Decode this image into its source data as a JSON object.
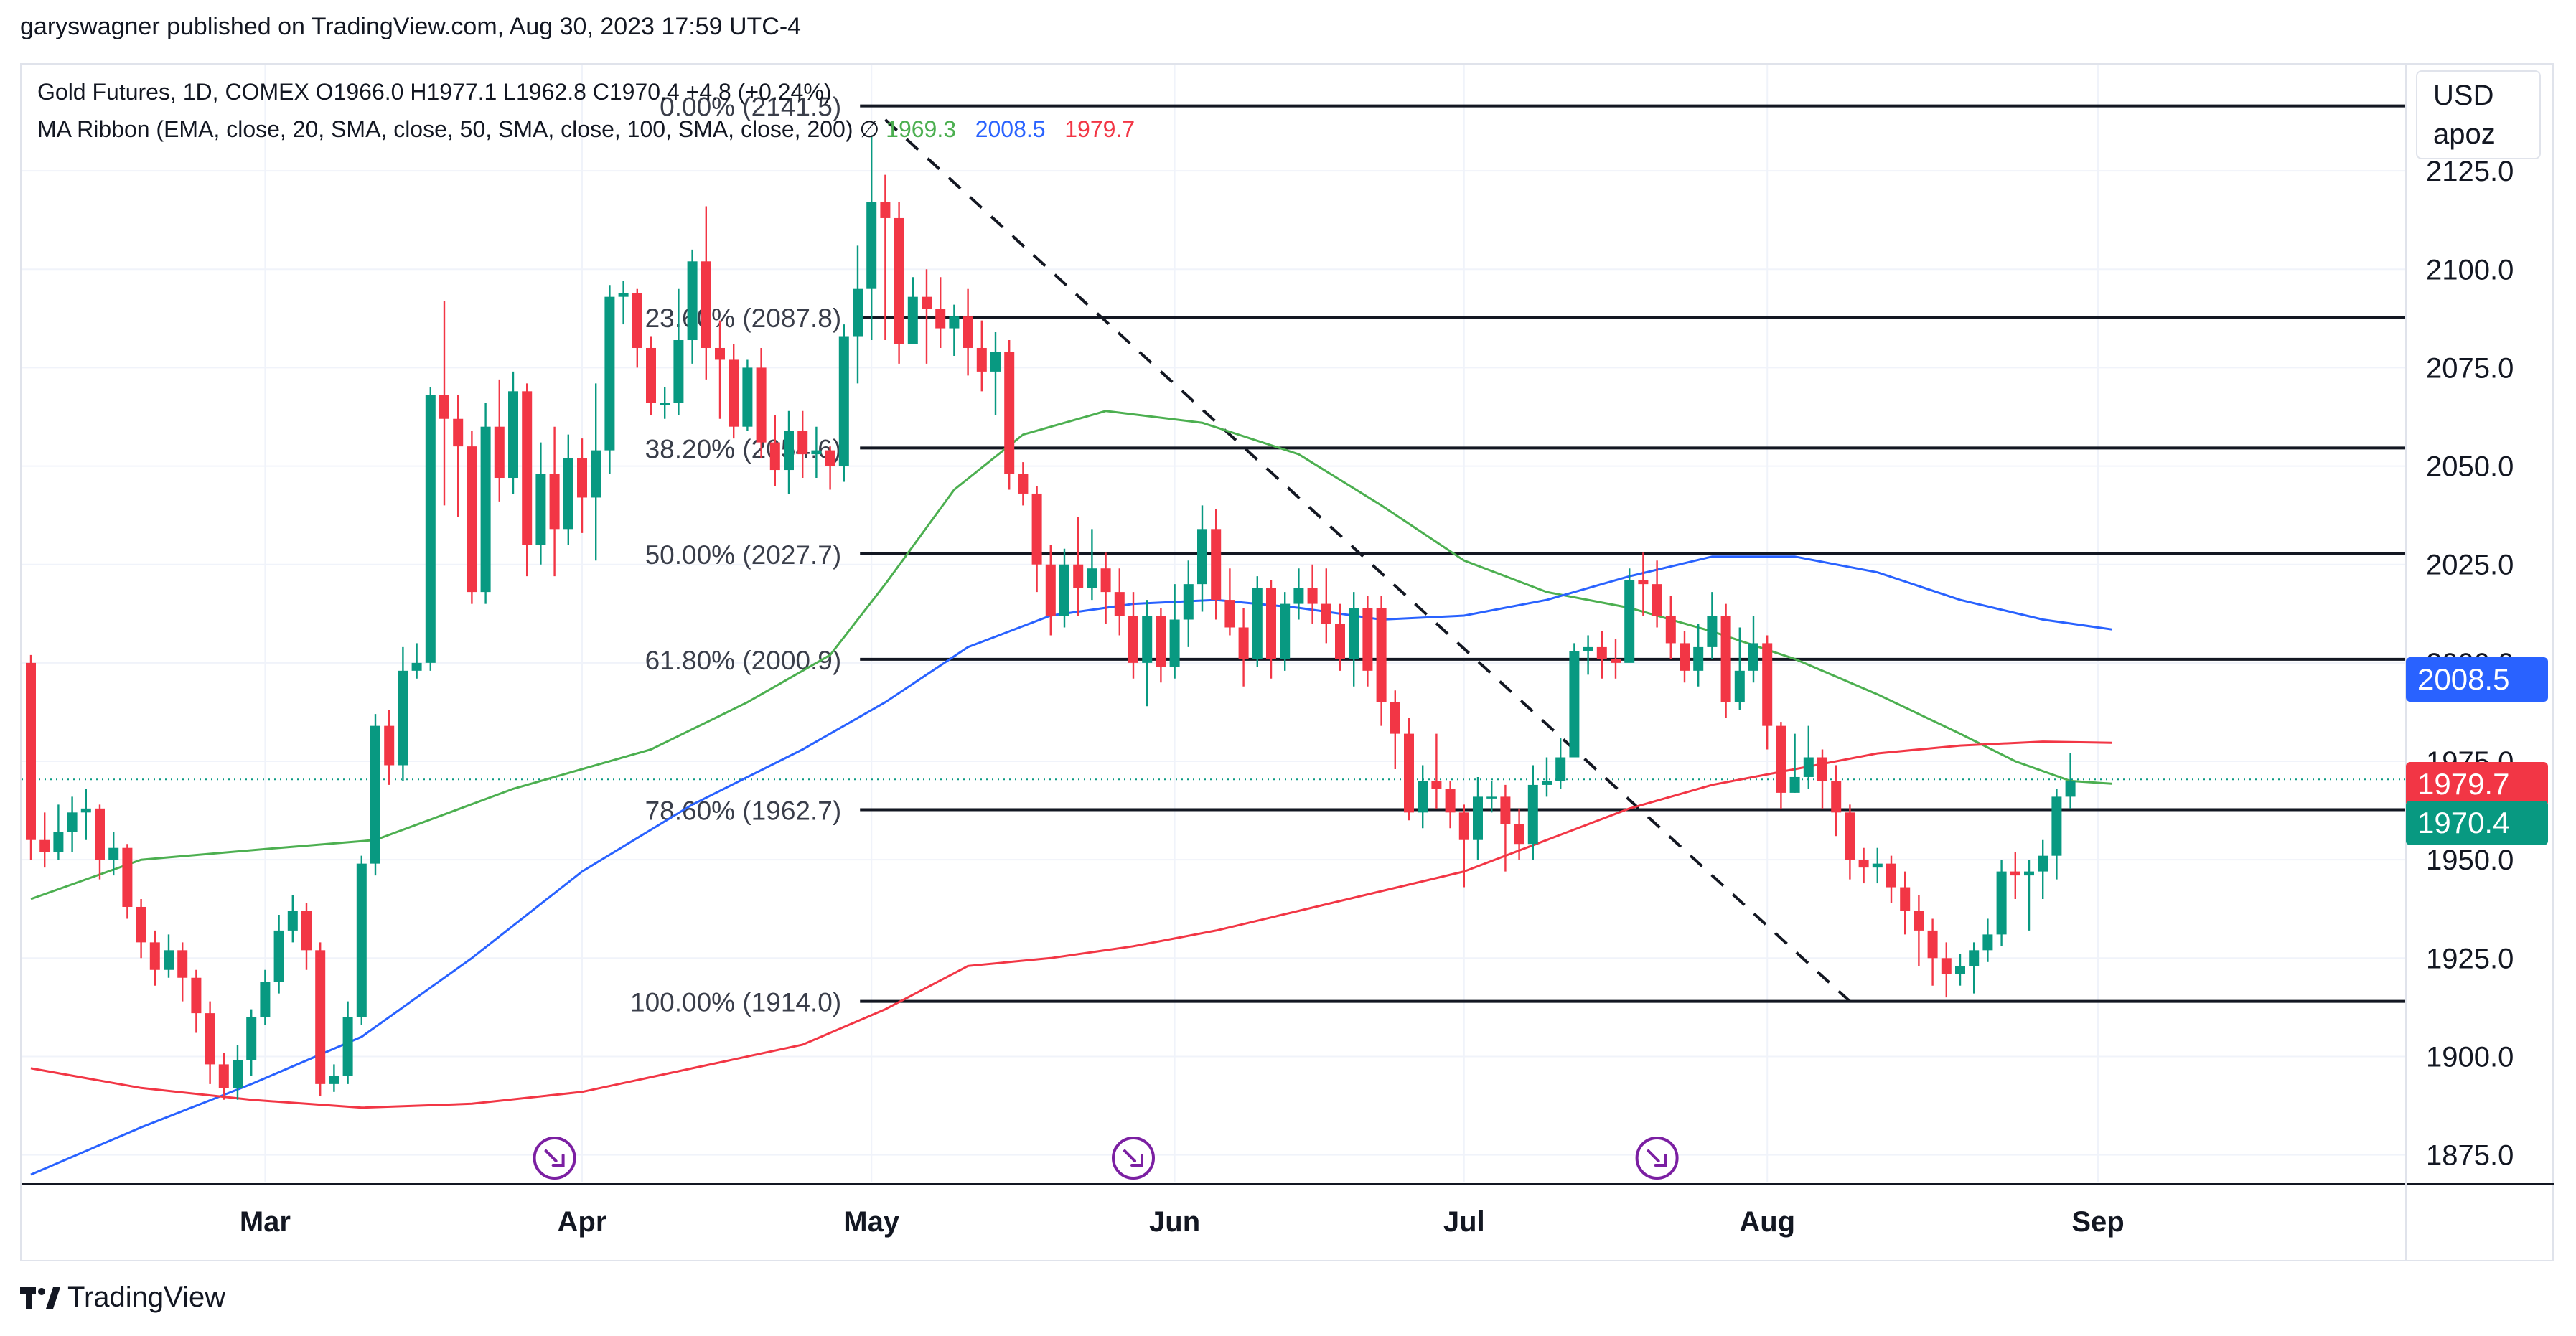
{
  "header": {
    "publisher_line": "garyswagner published on TradingView.com, Aug 30, 2023 17:59 UTC-4"
  },
  "legend": {
    "line1": "Gold Futures, 1D, COMEX  O1966.0  H1977.1  L1962.8  C1970.4  +4.8 (+0.24%)",
    "line2_prefix": "MA Ribbon (EMA, close, 20, SMA, close, 50, SMA, close, 100, SMA, close, 200)  ∅ ",
    "ma20_value": "1969.3",
    "ma50_value": "2008.5",
    "ma200_value": "1979.7"
  },
  "currency": {
    "line1": "USD",
    "line2": "apoz"
  },
  "price_badges": {
    "blue": "2008.5",
    "red": "1979.7",
    "green": "1970.4"
  },
  "brand": {
    "name": "TradingView"
  },
  "colors": {
    "up": "#089981",
    "down": "#f23645",
    "ma20": "#4caf50",
    "ma50": "#2962ff",
    "ma200": "#f23645",
    "fib": "#131722",
    "grid": "#f0f3fa",
    "event": "#7b1fa2"
  },
  "chart_data": {
    "type": "candlestick",
    "title": "Gold Futures, 1D, COMEX",
    "ylabel": "USD",
    "ylim": [
      1868,
      2152
    ],
    "y_ticks": [
      1875.0,
      1900.0,
      1925.0,
      1950.0,
      1975.0,
      2000.0,
      2025.0,
      2050.0,
      2075.0,
      2100.0,
      2125.0
    ],
    "x_tick_labels": [
      {
        "label": "Mar",
        "bar": 17
      },
      {
        "label": "Apr",
        "bar": 40
      },
      {
        "label": "May",
        "bar": 61
      },
      {
        "label": "Jun",
        "bar": 83
      },
      {
        "label": "Jul",
        "bar": 104
      },
      {
        "label": "Aug",
        "bar": 126
      },
      {
        "label": "Sep",
        "bar": 150
      }
    ],
    "candles": [
      [
        2000,
        1955,
        2002,
        1950
      ],
      [
        1955,
        1952,
        1962,
        1948
      ],
      [
        1952,
        1957,
        1964,
        1950
      ],
      [
        1957,
        1962,
        1966,
        1952
      ],
      [
        1962,
        1963,
        1968,
        1955
      ],
      [
        1963,
        1950,
        1964,
        1945
      ],
      [
        1950,
        1953,
        1957,
        1946
      ],
      [
        1953,
        1938,
        1954,
        1935
      ],
      [
        1938,
        1929,
        1940,
        1925
      ],
      [
        1929,
        1922,
        1932,
        1918
      ],
      [
        1922,
        1927,
        1931,
        1920
      ],
      [
        1927,
        1920,
        1929,
        1914
      ],
      [
        1920,
        1911,
        1922,
        1906
      ],
      [
        1911,
        1898,
        1914,
        1893
      ],
      [
        1898,
        1892,
        1901,
        1889
      ],
      [
        1892,
        1899,
        1903,
        1889
      ],
      [
        1899,
        1910,
        1912,
        1895
      ],
      [
        1910,
        1919,
        1922,
        1908
      ],
      [
        1919,
        1932,
        1936,
        1916
      ],
      [
        1932,
        1937,
        1941,
        1929
      ],
      [
        1937,
        1927,
        1939,
        1922
      ],
      [
        1927,
        1893,
        1929,
        1890
      ],
      [
        1893,
        1895,
        1898,
        1891
      ],
      [
        1895,
        1910,
        1914,
        1893
      ],
      [
        1910,
        1949,
        1951,
        1908
      ],
      [
        1949,
        1984,
        1987,
        1946
      ],
      [
        1984,
        1974,
        1988,
        1969
      ],
      [
        1974,
        1998,
        2004,
        1970
      ],
      [
        1998,
        2000,
        2005,
        1996
      ],
      [
        2000,
        2068,
        2070,
        1998
      ],
      [
        2068,
        2062,
        2092,
        2040
      ],
      [
        2062,
        2055,
        2068,
        2037
      ],
      [
        2055,
        2018,
        2059,
        2015
      ],
      [
        2018,
        2060,
        2066,
        2015
      ],
      [
        2060,
        2047,
        2072,
        2041
      ],
      [
        2047,
        2069,
        2074,
        2043
      ],
      [
        2069,
        2030,
        2071,
        2022
      ],
      [
        2030,
        2048,
        2056,
        2025
      ],
      [
        2048,
        2034,
        2060,
        2022
      ],
      [
        2034,
        2052,
        2058,
        2030
      ],
      [
        2052,
        2042,
        2057,
        2033
      ],
      [
        2042,
        2054,
        2071,
        2026
      ],
      [
        2054,
        2093,
        2096,
        2048
      ],
      [
        2093,
        2094,
        2097,
        2086
      ],
      [
        2094,
        2080,
        2095,
        2075
      ],
      [
        2080,
        2066,
        2083,
        2063
      ],
      [
        2066,
        2066,
        2070,
        2062
      ],
      [
        2066,
        2082,
        2095,
        2063
      ],
      [
        2082,
        2102,
        2105,
        2076
      ],
      [
        2102,
        2080,
        2116,
        2072
      ],
      [
        2080,
        2077,
        2087,
        2062
      ],
      [
        2077,
        2060,
        2081,
        2057
      ],
      [
        2060,
        2075,
        2077,
        2059
      ],
      [
        2075,
        2056,
        2080,
        2052
      ],
      [
        2056,
        2049,
        2063,
        2045
      ],
      [
        2049,
        2059,
        2064,
        2043
      ],
      [
        2059,
        2053,
        2064,
        2047
      ],
      [
        2053,
        2054,
        2060,
        2047
      ],
      [
        2054,
        2050,
        2055,
        2044
      ],
      [
        2050,
        2083,
        2086,
        2046
      ],
      [
        2083,
        2095,
        2106,
        2071
      ],
      [
        2095,
        2117,
        2134,
        2082
      ],
      [
        2117,
        2113,
        2124,
        2082
      ],
      [
        2113,
        2081,
        2117,
        2076
      ],
      [
        2081,
        2093,
        2098,
        2082
      ],
      [
        2093,
        2090,
        2100,
        2076
      ],
      [
        2090,
        2085,
        2098,
        2080
      ],
      [
        2085,
        2088,
        2091,
        2078
      ],
      [
        2088,
        2080,
        2095,
        2073
      ],
      [
        2080,
        2074,
        2087,
        2069
      ],
      [
        2074,
        2079,
        2084,
        2063
      ],
      [
        2079,
        2048,
        2082,
        2044
      ],
      [
        2048,
        2043,
        2051,
        2040
      ],
      [
        2043,
        2025,
        2045,
        2018
      ],
      [
        2025,
        2012,
        2030,
        2007
      ],
      [
        2012,
        2025,
        2029,
        2009
      ],
      [
        2025,
        2019,
        2037,
        2012
      ],
      [
        2019,
        2024,
        2034,
        2016
      ],
      [
        2024,
        2018,
        2028,
        2010
      ],
      [
        2018,
        2012,
        2024,
        2007
      ],
      [
        2012,
        2000,
        2018,
        1996
      ],
      [
        2000,
        2012,
        2016,
        1989
      ],
      [
        2012,
        1999,
        2014,
        1995
      ],
      [
        1999,
        2011,
        2020,
        1996
      ],
      [
        2011,
        2020,
        2026,
        2004
      ],
      [
        2020,
        2034,
        2040,
        2013
      ],
      [
        2034,
        2016,
        2039,
        2011
      ],
      [
        2016,
        2009,
        2024,
        2007
      ],
      [
        2009,
        2001,
        2014,
        1994
      ],
      [
        2001,
        2019,
        2022,
        1999
      ],
      [
        2019,
        2001,
        2021,
        1996
      ],
      [
        2001,
        2015,
        2018,
        1998
      ],
      [
        2015,
        2019,
        2024,
        2011
      ],
      [
        2019,
        2015,
        2025,
        2010
      ],
      [
        2015,
        2010,
        2024,
        2005
      ],
      [
        2010,
        2001,
        2015,
        1998
      ],
      [
        2001,
        2014,
        2018,
        1994
      ],
      [
        2014,
        1998,
        2017,
        1994
      ],
      [
        2014,
        1990,
        2017,
        1984
      ],
      [
        1990,
        1982,
        1993,
        1973
      ],
      [
        1982,
        1962,
        1986,
        1960
      ],
      [
        1962,
        1970,
        1974,
        1958
      ],
      [
        1970,
        1968,
        1982,
        1963
      ],
      [
        1968,
        1962,
        1970,
        1958
      ],
      [
        1962,
        1955,
        1964,
        1943
      ],
      [
        1955,
        1966,
        1971,
        1950
      ],
      [
        1966,
        1966,
        1970,
        1962
      ],
      [
        1966,
        1959,
        1969,
        1947
      ],
      [
        1959,
        1954,
        1963,
        1950
      ],
      [
        1954,
        1969,
        1974,
        1950
      ],
      [
        1969,
        1970,
        1976,
        1966
      ],
      [
        1970,
        1976,
        1981,
        1968
      ],
      [
        1976,
        2003,
        2005,
        1976
      ],
      [
        2003,
        2004,
        2007,
        1997
      ],
      [
        2004,
        2001,
        2008,
        1996
      ],
      [
        2001,
        2000,
        2006,
        1996
      ],
      [
        2000,
        2021,
        2024,
        2004
      ],
      [
        2021,
        2020,
        2028,
        2012
      ],
      [
        2020,
        2012,
        2026,
        2009
      ],
      [
        2012,
        2005,
        2017,
        2001
      ],
      [
        2005,
        1998,
        2008,
        1995
      ],
      [
        1998,
        2004,
        2010,
        1994
      ],
      [
        2004,
        2012,
        2018,
        2001
      ],
      [
        2012,
        1990,
        2015,
        1986
      ],
      [
        1990,
        1998,
        2009,
        1988
      ],
      [
        1998,
        2005,
        2012,
        1995
      ],
      [
        2005,
        1984,
        2007,
        1978
      ],
      [
        1984,
        1967,
        1985,
        1963
      ],
      [
        1967,
        1971,
        1982,
        1967
      ],
      [
        1971,
        1976,
        1984,
        1968
      ],
      [
        1976,
        1970,
        1978,
        1963
      ],
      [
        1970,
        1962,
        1974,
        1956
      ],
      [
        1962,
        1950,
        1964,
        1945
      ],
      [
        1950,
        1948,
        1953,
        1944
      ],
      [
        1948,
        1949,
        1953,
        1944
      ],
      [
        1949,
        1943,
        1951,
        1939
      ],
      [
        1943,
        1937,
        1947,
        1931
      ],
      [
        1937,
        1932,
        1941,
        1923
      ],
      [
        1932,
        1925,
        1935,
        1918
      ],
      [
        1925,
        1921,
        1929,
        1915
      ],
      [
        1921,
        1923,
        1926,
        1918
      ],
      [
        1923,
        1927,
        1929,
        1916
      ],
      [
        1927,
        1931,
        1935,
        1924
      ],
      [
        1931,
        1947,
        1950,
        1928
      ],
      [
        1947,
        1946,
        1952,
        1940
      ],
      [
        1946,
        1947,
        1950,
        1932
      ],
      [
        1947,
        1951,
        1955,
        1940
      ],
      [
        1951,
        1966,
        1968,
        1945
      ],
      [
        1966,
        1970,
        1977,
        1963
      ]
    ],
    "moving_averages": [
      {
        "name": "EMA 20",
        "color": "#4caf50",
        "values": [
          [
            0,
            1940
          ],
          [
            8,
            1950
          ],
          [
            18,
            1953
          ],
          [
            25,
            1955
          ],
          [
            35,
            1968
          ],
          [
            45,
            1978
          ],
          [
            52,
            1990
          ],
          [
            58,
            2002
          ],
          [
            62,
            2020
          ],
          [
            67,
            2044
          ],
          [
            72,
            2058
          ],
          [
            78,
            2064
          ],
          [
            85,
            2061
          ],
          [
            92,
            2053
          ],
          [
            98,
            2040
          ],
          [
            104,
            2026
          ],
          [
            110,
            2018
          ],
          [
            116,
            2014
          ],
          [
            122,
            2008
          ],
          [
            128,
            2001
          ],
          [
            134,
            1992
          ],
          [
            140,
            1982
          ],
          [
            144,
            1975
          ],
          [
            148,
            1970
          ],
          [
            151,
            1969.3
          ]
        ]
      },
      {
        "name": "SMA 50",
        "color": "#2962ff",
        "values": [
          [
            0,
            1870
          ],
          [
            8,
            1882
          ],
          [
            16,
            1893
          ],
          [
            24,
            1905
          ],
          [
            32,
            1925
          ],
          [
            40,
            1947
          ],
          [
            48,
            1964
          ],
          [
            56,
            1978
          ],
          [
            62,
            1990
          ],
          [
            68,
            2004
          ],
          [
            74,
            2012
          ],
          [
            80,
            2015
          ],
          [
            86,
            2016
          ],
          [
            92,
            2014
          ],
          [
            98,
            2011
          ],
          [
            104,
            2012
          ],
          [
            110,
            2016
          ],
          [
            116,
            2022
          ],
          [
            122,
            2027
          ],
          [
            128,
            2027
          ],
          [
            134,
            2023
          ],
          [
            140,
            2016
          ],
          [
            146,
            2011
          ],
          [
            151,
            2008.5
          ]
        ]
      },
      {
        "name": "SMA 200",
        "color": "#f23645",
        "values": [
          [
            0,
            1897
          ],
          [
            8,
            1892
          ],
          [
            16,
            1889
          ],
          [
            24,
            1887
          ],
          [
            32,
            1888
          ],
          [
            40,
            1891
          ],
          [
            48,
            1897
          ],
          [
            56,
            1903
          ],
          [
            62,
            1912
          ],
          [
            68,
            1923
          ],
          [
            74,
            1925
          ],
          [
            80,
            1928
          ],
          [
            86,
            1932
          ],
          [
            92,
            1937
          ],
          [
            98,
            1942
          ],
          [
            104,
            1947
          ],
          [
            110,
            1955
          ],
          [
            116,
            1963
          ],
          [
            122,
            1969
          ],
          [
            128,
            1973
          ],
          [
            134,
            1977
          ],
          [
            140,
            1979
          ],
          [
            146,
            1980
          ],
          [
            151,
            1979.7
          ]
        ]
      }
    ],
    "fibonacci": [
      {
        "label": "0.00% (2141.5)",
        "level": 2141.5
      },
      {
        "label": "23.60% (2087.8)",
        "level": 2087.8
      },
      {
        "label": "38.20% (2054.6)",
        "level": 2054.6
      },
      {
        "label": "50.00% (2027.7)",
        "level": 2027.7
      },
      {
        "label": "61.80% (2000.9)",
        "level": 2000.9
      },
      {
        "label": "78.60% (1962.7)",
        "level": 1962.7
      },
      {
        "label": "100.00% (1914.0)",
        "level": 1914.0
      }
    ],
    "fib_start_bar": 61,
    "trendline": {
      "from": [
        62,
        2138
      ],
      "to": [
        132,
        1914
      ]
    },
    "last_price": 1970.4,
    "event_markers_bars": [
      38,
      80,
      118
    ]
  }
}
